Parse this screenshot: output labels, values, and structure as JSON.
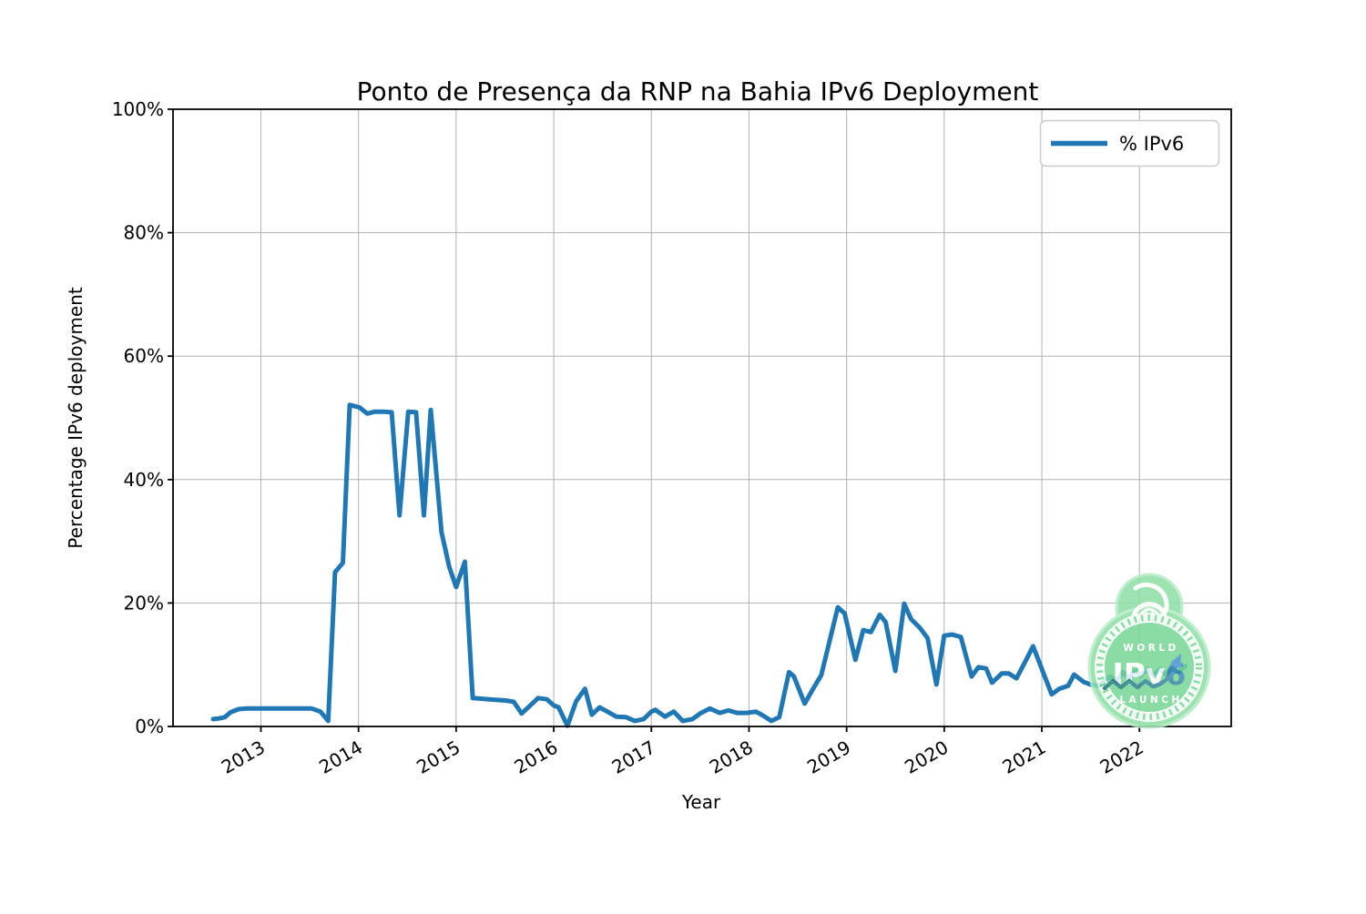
{
  "legend": {
    "label": "% IPv6",
    "line_color": "#1f77b4"
  },
  "watermark": {
    "name": "world-ipv6-launch-badge",
    "world": "WORLD",
    "ipv": "IPv",
    "six": "6",
    "launch": "LAUNCH",
    "green_outer": "#8ddfa5",
    "green_inner": "#77d795",
    "swoosh_teal": "#1d7a70",
    "swoosh_blue": "#4a93ce"
  },
  "colors": {
    "line": "#1f77b4",
    "grid": "#b0b0b0",
    "spine": "#000000",
    "legend_border": "#cccccc"
  },
  "chart_data": {
    "type": "line",
    "title": "Ponto de Presença da RNP na Bahia IPv6 Deployment",
    "xlabel": "Year",
    "ylabel": "Percentage IPv6 deployment",
    "xlim": [
      2012.1,
      2022.94
    ],
    "ylim": [
      0,
      100
    ],
    "grid": true,
    "legend_position": "upper right",
    "x_ticks": [
      2013,
      2014,
      2015,
      2016,
      2017,
      2018,
      2019,
      2020,
      2021,
      2022
    ],
    "x_tick_labels": [
      "2013",
      "2014",
      "2015",
      "2016",
      "2017",
      "2018",
      "2019",
      "2020",
      "2021",
      "2022"
    ],
    "y_ticks": [
      0,
      20,
      40,
      60,
      80,
      100
    ],
    "y_tick_labels": [
      "0%",
      "20%",
      "40%",
      "60%",
      "80%",
      "100%"
    ],
    "series": [
      {
        "name": "% IPv6",
        "color": "#1f77b4",
        "line_width": 5,
        "points": [
          [
            2012.51,
            1.2
          ],
          [
            2012.57,
            1.3
          ],
          [
            2012.63,
            1.5
          ],
          [
            2012.69,
            2.3
          ],
          [
            2012.77,
            2.8
          ],
          [
            2012.85,
            2.9
          ],
          [
            2013.0,
            2.9
          ],
          [
            2013.15,
            2.9
          ],
          [
            2013.3,
            2.9
          ],
          [
            2013.45,
            2.9
          ],
          [
            2013.52,
            2.9
          ],
          [
            2013.61,
            2.4
          ],
          [
            2013.69,
            0.9
          ],
          [
            2013.76,
            25.0
          ],
          [
            2013.84,
            26.5
          ],
          [
            2013.91,
            52.1
          ],
          [
            2014.01,
            51.7
          ],
          [
            2014.09,
            50.7
          ],
          [
            2014.17,
            51.0
          ],
          [
            2014.26,
            51.0
          ],
          [
            2014.34,
            50.9
          ],
          [
            2014.42,
            34.2
          ],
          [
            2014.51,
            51.0
          ],
          [
            2014.59,
            50.9
          ],
          [
            2014.67,
            34.2
          ],
          [
            2014.74,
            51.3
          ],
          [
            2014.85,
            31.5
          ],
          [
            2014.93,
            25.8
          ],
          [
            2015.0,
            22.6
          ],
          [
            2015.09,
            26.7
          ],
          [
            2015.17,
            4.6
          ],
          [
            2015.34,
            4.4
          ],
          [
            2015.51,
            4.2
          ],
          [
            2015.59,
            4.0
          ],
          [
            2015.67,
            2.1
          ],
          [
            2015.76,
            3.4
          ],
          [
            2015.84,
            4.6
          ],
          [
            2015.93,
            4.4
          ],
          [
            2016.0,
            3.4
          ],
          [
            2016.05,
            3.1
          ],
          [
            2016.14,
            0.1
          ],
          [
            2016.23,
            4.1
          ],
          [
            2016.32,
            6.1
          ],
          [
            2016.39,
            1.9
          ],
          [
            2016.47,
            3.1
          ],
          [
            2016.55,
            2.4
          ],
          [
            2016.64,
            1.6
          ],
          [
            2016.74,
            1.5
          ],
          [
            2016.83,
            0.9
          ],
          [
            2016.92,
            1.2
          ],
          [
            2017.0,
            2.4
          ],
          [
            2017.04,
            2.7
          ],
          [
            2017.14,
            1.6
          ],
          [
            2017.23,
            2.4
          ],
          [
            2017.32,
            0.9
          ],
          [
            2017.42,
            1.2
          ],
          [
            2017.51,
            2.2
          ],
          [
            2017.6,
            2.9
          ],
          [
            2017.7,
            2.2
          ],
          [
            2017.79,
            2.6
          ],
          [
            2017.88,
            2.2
          ],
          [
            2017.98,
            2.2
          ],
          [
            2018.07,
            2.4
          ],
          [
            2018.14,
            1.8
          ],
          [
            2018.23,
            0.9
          ],
          [
            2018.31,
            1.5
          ],
          [
            2018.41,
            8.8
          ],
          [
            2018.46,
            8.1
          ],
          [
            2018.57,
            3.7
          ],
          [
            2018.66,
            6.2
          ],
          [
            2018.74,
            8.3
          ],
          [
            2018.82,
            13.5
          ],
          [
            2018.91,
            19.3
          ],
          [
            2018.98,
            18.3
          ],
          [
            2019.09,
            10.8
          ],
          [
            2019.17,
            15.6
          ],
          [
            2019.25,
            15.3
          ],
          [
            2019.34,
            18.1
          ],
          [
            2019.4,
            16.9
          ],
          [
            2019.5,
            9.0
          ],
          [
            2019.59,
            19.9
          ],
          [
            2019.66,
            17.4
          ],
          [
            2019.75,
            16.0
          ],
          [
            2019.83,
            14.3
          ],
          [
            2019.92,
            6.8
          ],
          [
            2020.0,
            14.7
          ],
          [
            2020.08,
            14.9
          ],
          [
            2020.17,
            14.5
          ],
          [
            2020.28,
            8.1
          ],
          [
            2020.35,
            9.6
          ],
          [
            2020.43,
            9.4
          ],
          [
            2020.49,
            7.1
          ],
          [
            2020.59,
            8.6
          ],
          [
            2020.66,
            8.6
          ],
          [
            2020.74,
            7.8
          ],
          [
            2020.83,
            10.5
          ],
          [
            2020.91,
            13.0
          ],
          [
            2021.1,
            5.2
          ],
          [
            2021.18,
            6.1
          ],
          [
            2021.27,
            6.6
          ],
          [
            2021.33,
            8.4
          ],
          [
            2021.43,
            7.2
          ],
          [
            2021.5,
            6.8
          ],
          [
            2021.58,
            6.6
          ],
          [
            2021.66,
            7.6
          ],
          [
            2021.7,
            8.1
          ],
          [
            2021.77,
            7.4
          ],
          [
            2021.83,
            8.8
          ],
          [
            2021.89,
            7.8
          ],
          [
            2021.96,
            9.0
          ],
          [
            2022.01,
            8.2
          ],
          [
            2022.08,
            9.3
          ],
          [
            2022.14,
            8.3
          ],
          [
            2022.21,
            9.3
          ],
          [
            2022.27,
            8.4
          ],
          [
            2022.34,
            9.4
          ],
          [
            2022.4,
            8.8
          ],
          [
            2022.47,
            9.8
          ]
        ]
      }
    ]
  }
}
